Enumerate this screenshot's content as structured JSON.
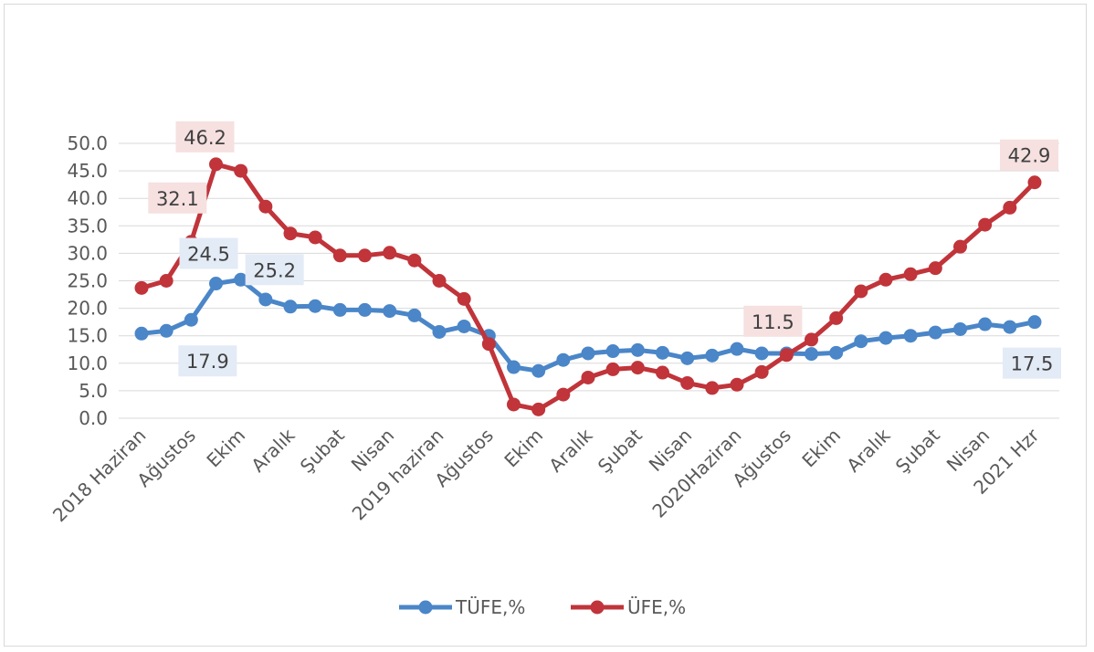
{
  "chart_data": {
    "type": "line",
    "categories": [
      "2018 Haziran",
      "",
      "Ağustos",
      "",
      "Ekim",
      "",
      "Aralık",
      "",
      "Şubat",
      "",
      "Nisan",
      "",
      "2019 haziran",
      "",
      "Ağustos",
      "",
      "Ekim",
      "",
      "Aralık",
      "",
      "Şubat",
      "",
      "Nisan",
      "",
      "2020Haziran",
      "",
      "Ağustos",
      "",
      "Ekim",
      "",
      "Aralık",
      "",
      "Şubat",
      "",
      "Nisan",
      "",
      "2021 Hzr"
    ],
    "series": [
      {
        "name": "TÜFE,%",
        "color": "#4a86c8",
        "values": [
          15.4,
          15.9,
          17.9,
          24.5,
          25.2,
          21.6,
          20.3,
          20.4,
          19.7,
          19.7,
          19.5,
          18.7,
          15.7,
          16.7,
          15.0,
          9.3,
          8.6,
          10.6,
          11.8,
          12.2,
          12.4,
          11.9,
          10.9,
          11.4,
          12.6,
          11.8,
          11.8,
          11.7,
          11.9,
          14.0,
          14.6,
          15.0,
          15.6,
          16.2,
          17.1,
          16.6,
          17.5
        ]
      },
      {
        "name": "ÜFE,%",
        "color": "#c0343a",
        "values": [
          23.7,
          25.0,
          32.1,
          46.2,
          45.0,
          38.5,
          33.6,
          32.9,
          29.6,
          29.6,
          30.1,
          28.7,
          25.0,
          21.7,
          13.5,
          2.5,
          1.6,
          4.3,
          7.4,
          8.9,
          9.2,
          8.3,
          6.4,
          5.5,
          6.1,
          8.4,
          11.5,
          14.3,
          18.2,
          23.1,
          25.2,
          26.2,
          27.3,
          31.2,
          35.2,
          38.3,
          42.9
        ]
      }
    ],
    "data_labels": [
      {
        "series": 1,
        "index": 2,
        "text": "32.1"
      },
      {
        "series": 1,
        "index": 3,
        "text": "46.2"
      },
      {
        "series": 0,
        "index": 3,
        "text": "24.5"
      },
      {
        "series": 0,
        "index": 4,
        "text": "25.2"
      },
      {
        "series": 0,
        "index": 2,
        "text": "17.9"
      },
      {
        "series": 1,
        "index": 26,
        "text": "11.5"
      },
      {
        "series": 1,
        "index": 36,
        "text": "42.9"
      },
      {
        "series": 0,
        "index": 36,
        "text": "17.5"
      }
    ],
    "yticks": [
      "0.0",
      "5.0",
      "10.0",
      "15.0",
      "20.0",
      "25.0",
      "30.0",
      "35.0",
      "40.0",
      "45.0",
      "50.0"
    ],
    "ylim": [
      0,
      50
    ],
    "grid": true,
    "legend": "bottom",
    "title": "",
    "xlabel": "",
    "ylabel": ""
  }
}
